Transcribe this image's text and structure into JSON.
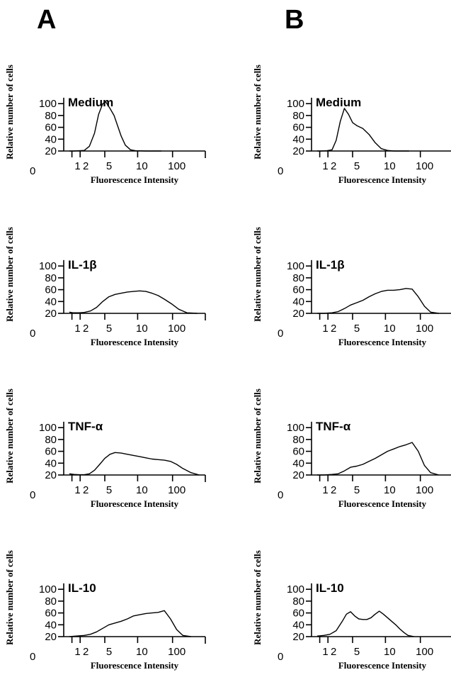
{
  "panel_labels": [
    "A",
    "B"
  ],
  "chart_data": [
    {
      "column": "A",
      "type": "line",
      "title": "Medium",
      "xlabel": "Fluorescence Intensity",
      "ylabel": "Relative number of cells",
      "y_ticks": [
        "0",
        "20",
        "40",
        "60",
        "80",
        "100"
      ],
      "x_ticks": [
        "1",
        "2",
        "5",
        "10",
        "100"
      ],
      "ylim": [
        0,
        110
      ],
      "series": [
        {
          "x": [
            0.55,
            1.0,
            1.5,
            2.0,
            2.5,
            3.0,
            3.4,
            3.8,
            4.1,
            4.5,
            4.9,
            5.2,
            5.6,
            6.0,
            6.5,
            7.0,
            8.0,
            9.5
          ],
          "y": [
            20,
            20,
            20.5,
            21,
            28,
            50,
            82,
            100,
            103,
            92,
            80,
            65,
            45,
            30,
            22,
            20.5,
            20,
            20
          ]
        }
      ]
    },
    {
      "column": "B",
      "type": "line",
      "title": "Medium",
      "xlabel": "Fluorescence Intensity",
      "ylabel": "Relative number of cells",
      "y_ticks": [
        "0",
        "20",
        "40",
        "60",
        "80",
        "100"
      ],
      "x_ticks": [
        "1",
        "2",
        "5",
        "10",
        "100"
      ],
      "ylim": [
        0,
        110
      ],
      "series": [
        {
          "x": [
            0.55,
            1.0,
            1.5,
            2.0,
            2.4,
            2.8,
            3.2,
            3.6,
            4.0,
            4.4,
            5.0,
            5.6,
            6.2,
            6.8,
            7.4,
            8.0,
            9.5
          ],
          "y": [
            20,
            20,
            20.5,
            22,
            38,
            70,
            92,
            82,
            68,
            63,
            58,
            48,
            34,
            24,
            21,
            20,
            20
          ]
        }
      ]
    },
    {
      "column": "A",
      "type": "line",
      "title": "IL-1β",
      "xlabel": "Fluorescence Intensity",
      "ylabel": "Relative number of cells",
      "y_ticks": [
        "0",
        "20",
        "40",
        "60",
        "80",
        "100"
      ],
      "x_ticks": [
        "1",
        "2",
        "5",
        "10",
        "100"
      ],
      "ylim": [
        0,
        110
      ],
      "series": [
        {
          "x": [
            0.55,
            0.9,
            1.5,
            2.0,
            2.6,
            3.2,
            3.8,
            4.4,
            5.0,
            5.6,
            6.2,
            6.8,
            7.4,
            8.0,
            8.6,
            9.2,
            9.8,
            10.5,
            11.2,
            12.0,
            13.0
          ],
          "y": [
            22,
            21,
            21,
            21.5,
            24,
            30,
            40,
            48,
            52,
            54,
            56,
            57,
            58,
            57,
            54,
            50,
            44,
            36,
            27,
            21,
            20
          ]
        }
      ]
    },
    {
      "column": "B",
      "type": "line",
      "title": "IL-1β",
      "xlabel": "Fluorescence Intensity",
      "ylabel": "Relative number of cells",
      "y_ticks": [
        "0",
        "20",
        "40",
        "60",
        "80",
        "100"
      ],
      "x_ticks": [
        "1",
        "2",
        "5",
        "10",
        "100"
      ],
      "ylim": [
        0,
        110
      ],
      "series": [
        {
          "x": [
            0.55,
            1.2,
            2.0,
            2.6,
            3.2,
            3.8,
            4.4,
            5.0,
            5.6,
            6.2,
            6.8,
            7.4,
            8.0,
            8.6,
            9.2,
            9.8,
            10.4,
            11.0,
            11.6,
            12.4
          ],
          "y": [
            20,
            20,
            21,
            23,
            28,
            34,
            38,
            42,
            48,
            53,
            57,
            59,
            59,
            60,
            62,
            61,
            48,
            32,
            22,
            20
          ]
        }
      ]
    },
    {
      "column": "A",
      "type": "line",
      "title": "TNF-α",
      "xlabel": "Fluorescence Intensity",
      "ylabel": "Relative number of cells",
      "y_ticks": [
        "0",
        "20",
        "40",
        "60",
        "80",
        "100"
      ],
      "x_ticks": [
        "1",
        "2",
        "5",
        "10",
        "100"
      ],
      "ylim": [
        0,
        110
      ],
      "series": [
        {
          "x": [
            0.55,
            1.0,
            1.5,
            2.0,
            2.5,
            3.0,
            3.5,
            4.0,
            4.5,
            5.0,
            5.6,
            6.2,
            6.8,
            7.4,
            8.0,
            8.6,
            9.2,
            9.8,
            10.4,
            11.0,
            11.6,
            12.4,
            13.2
          ],
          "y": [
            22,
            21,
            20.5,
            20.5,
            22,
            28,
            38,
            48,
            55,
            58,
            57,
            55,
            53,
            51,
            49,
            47,
            46,
            45,
            43,
            38,
            31,
            24,
            20
          ]
        }
      ]
    },
    {
      "column": "B",
      "type": "line",
      "title": "TNF-α",
      "xlabel": "Fluorescence Intensity",
      "ylabel": "Relative number of cells",
      "y_ticks": [
        "0",
        "20",
        "40",
        "60",
        "80",
        "100"
      ],
      "x_ticks": [
        "1",
        "2",
        "5",
        "10",
        "100"
      ],
      "ylim": [
        0,
        110
      ],
      "series": [
        {
          "x": [
            0.55,
            1.2,
            2.0,
            2.6,
            3.2,
            3.8,
            4.4,
            5.0,
            5.6,
            6.2,
            6.8,
            7.4,
            8.0,
            8.6,
            9.2,
            9.8,
            10.4,
            11.0,
            11.6,
            12.4
          ],
          "y": [
            20,
            20,
            21,
            22,
            27,
            33,
            35,
            38,
            43,
            48,
            54,
            60,
            64,
            68,
            71,
            75,
            60,
            36,
            24,
            20
          ]
        }
      ]
    },
    {
      "column": "A",
      "type": "line",
      "title": "IL-10",
      "xlabel": "Fluorescence Intensity",
      "ylabel": "Relative number of cells",
      "y_ticks": [
        "0",
        "20",
        "40",
        "60",
        "80",
        "100"
      ],
      "x_ticks": [
        "1",
        "2",
        "5",
        "10",
        "100"
      ],
      "ylim": [
        0,
        110
      ],
      "series": [
        {
          "x": [
            0.55,
            1.2,
            2.0,
            2.6,
            3.2,
            3.8,
            4.4,
            5.0,
            5.6,
            6.2,
            6.8,
            7.4,
            8.0,
            8.6,
            9.2,
            9.8,
            10.4,
            11.0,
            11.6,
            12.4
          ],
          "y": [
            20,
            21,
            22,
            24,
            28,
            34,
            40,
            43,
            46,
            50,
            55,
            57,
            59,
            60,
            61,
            64,
            50,
            32,
            22,
            20
          ]
        }
      ]
    },
    {
      "column": "B",
      "type": "line",
      "title": "IL-10",
      "xlabel": "Fluorescence Intensity",
      "ylabel": "Relative number of cells",
      "y_ticks": [
        "0",
        "20",
        "40",
        "60",
        "80",
        "100"
      ],
      "x_ticks": [
        "1",
        "2",
        "5",
        "10",
        "100"
      ],
      "ylim": [
        0,
        110
      ],
      "series": [
        {
          "x": [
            0.55,
            1.2,
            1.8,
            2.4,
            3.0,
            3.4,
            3.8,
            4.2,
            4.6,
            5.0,
            5.4,
            5.8,
            6.2,
            6.6,
            7.0,
            7.4,
            7.8,
            8.2,
            8.6,
            9.0,
            9.4,
            10.0
          ],
          "y": [
            21,
            22,
            24,
            30,
            46,
            58,
            62,
            55,
            50,
            49,
            49,
            52,
            58,
            63,
            58,
            52,
            46,
            40,
            33,
            27,
            22,
            20
          ]
        }
      ]
    }
  ]
}
